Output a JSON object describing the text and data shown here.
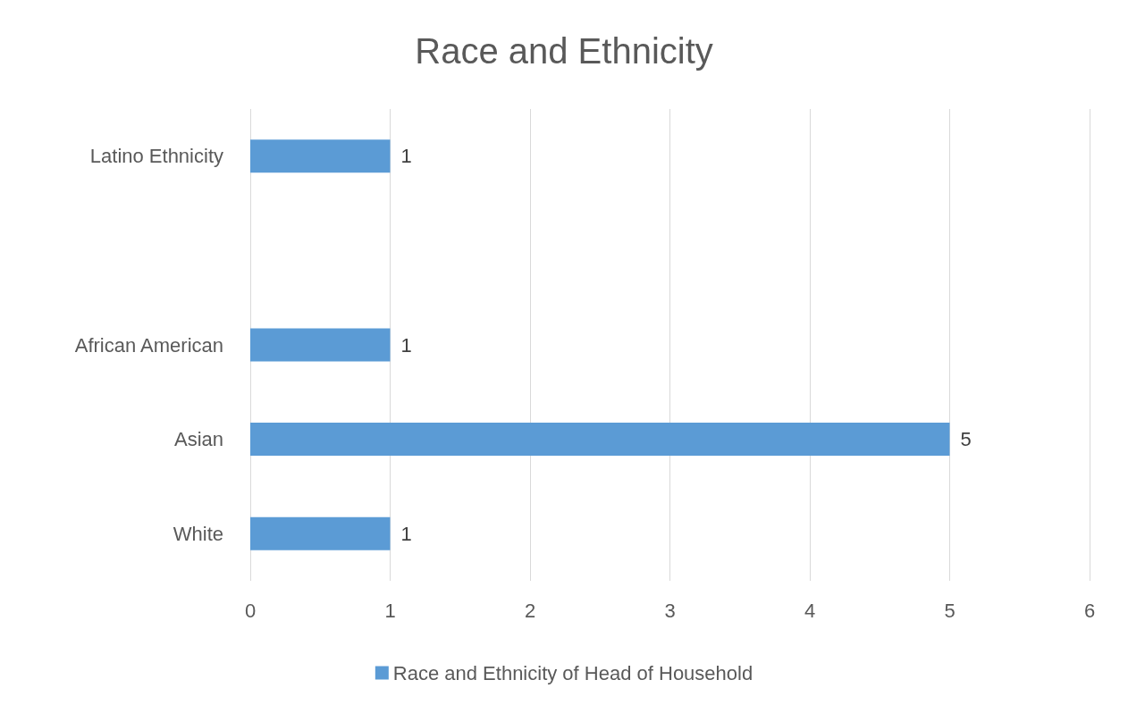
{
  "chart_data": {
    "type": "bar",
    "title": "Race and Ethnicity",
    "orientation": "horizontal",
    "categories": [
      "Latino Ethnicity",
      null,
      "African American",
      "Asian",
      "White"
    ],
    "series": [
      {
        "name": "Race and Ethnicity of Head of Household",
        "color": "#5b9bd5",
        "values": [
          1,
          null,
          1,
          5,
          1
        ]
      }
    ],
    "xlim": [
      0,
      6
    ],
    "xticks": [
      0,
      1,
      2,
      3,
      4,
      5,
      6
    ],
    "grid": "x",
    "legend": "bottom",
    "data_labels": true
  }
}
